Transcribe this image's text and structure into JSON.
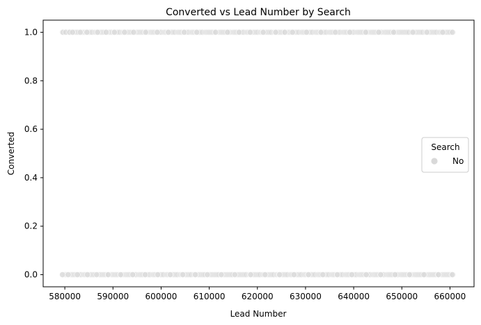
{
  "chart_data": {
    "type": "scatter",
    "title": "Converted vs Lead Number by Search",
    "xlabel": "Lead Number",
    "ylabel": "Converted",
    "xlim": [
      575500,
      665000
    ],
    "ylim": [
      -0.05,
      1.05
    ],
    "x_ticks": [
      580000,
      590000,
      600000,
      610000,
      620000,
      630000,
      640000,
      650000,
      660000
    ],
    "x_tick_labels": [
      "580000",
      "590000",
      "600000",
      "610000",
      "620000",
      "630000",
      "640000",
      "650000",
      "660000"
    ],
    "y_ticks": [
      0.0,
      0.2,
      0.4,
      0.6,
      0.8,
      1.0
    ],
    "y_tick_labels": [
      "0.0",
      "0.2",
      "0.4",
      "0.6",
      "0.8",
      "1.0"
    ],
    "grid": false,
    "legend": {
      "title": "Search",
      "placement": "center-right",
      "entries": [
        {
          "label": "No",
          "color": "#d9d9d9"
        }
      ]
    },
    "series": [
      {
        "name": "No",
        "color": "#d9d9d9",
        "y_levels": [
          0,
          1
        ],
        "x_range": [
          579500,
          660700
        ],
        "points": [
          {
            "x": 579600,
            "y": 1
          },
          {
            "x": 580200,
            "y": 1
          },
          {
            "x": 581000,
            "y": 1
          },
          {
            "x": 581600,
            "y": 1
          },
          {
            "x": 583200,
            "y": 1
          },
          {
            "x": 584600,
            "y": 1
          },
          {
            "x": 586800,
            "y": 1
          },
          {
            "x": 588600,
            "y": 1
          },
          {
            "x": 590300,
            "y": 1
          },
          {
            "x": 592400,
            "y": 1
          },
          {
            "x": 594300,
            "y": 1
          },
          {
            "x": 596800,
            "y": 1
          },
          {
            "x": 599200,
            "y": 1
          },
          {
            "x": 601500,
            "y": 1
          },
          {
            "x": 604800,
            "y": 1
          },
          {
            "x": 607400,
            "y": 1
          },
          {
            "x": 611300,
            "y": 1
          },
          {
            "x": 613800,
            "y": 1
          },
          {
            "x": 616200,
            "y": 1
          },
          {
            "x": 618500,
            "y": 1
          },
          {
            "x": 621200,
            "y": 1
          },
          {
            "x": 623800,
            "y": 1
          },
          {
            "x": 625700,
            "y": 1
          },
          {
            "x": 627300,
            "y": 1
          },
          {
            "x": 630200,
            "y": 1
          },
          {
            "x": 633200,
            "y": 1
          },
          {
            "x": 636200,
            "y": 1
          },
          {
            "x": 639200,
            "y": 1
          },
          {
            "x": 642500,
            "y": 1
          },
          {
            "x": 645200,
            "y": 1
          },
          {
            "x": 648300,
            "y": 1
          },
          {
            "x": 652300,
            "y": 1
          },
          {
            "x": 655200,
            "y": 1
          },
          {
            "x": 658500,
            "y": 1
          },
          {
            "x": 660500,
            "y": 1
          },
          {
            "x": 579500,
            "y": 0
          },
          {
            "x": 580700,
            "y": 0
          },
          {
            "x": 582600,
            "y": 0
          },
          {
            "x": 584700,
            "y": 0
          },
          {
            "x": 586600,
            "y": 0
          },
          {
            "x": 589000,
            "y": 0
          },
          {
            "x": 591600,
            "y": 0
          },
          {
            "x": 594100,
            "y": 0
          },
          {
            "x": 596700,
            "y": 0
          },
          {
            "x": 599300,
            "y": 0
          },
          {
            "x": 601900,
            "y": 0
          },
          {
            "x": 604500,
            "y": 0
          },
          {
            "x": 607100,
            "y": 0
          },
          {
            "x": 609600,
            "y": 0
          },
          {
            "x": 612500,
            "y": 0
          },
          {
            "x": 615300,
            "y": 0
          },
          {
            "x": 618600,
            "y": 0
          },
          {
            "x": 621600,
            "y": 0
          },
          {
            "x": 624600,
            "y": 0
          },
          {
            "x": 627600,
            "y": 0
          },
          {
            "x": 630600,
            "y": 0
          },
          {
            "x": 633600,
            "y": 0
          },
          {
            "x": 636600,
            "y": 0
          },
          {
            "x": 639600,
            "y": 0
          },
          {
            "x": 642600,
            "y": 0
          },
          {
            "x": 645600,
            "y": 0
          },
          {
            "x": 648600,
            "y": 0
          },
          {
            "x": 651600,
            "y": 0
          },
          {
            "x": 654600,
            "y": 0
          },
          {
            "x": 657600,
            "y": 0
          },
          {
            "x": 660500,
            "y": 0
          }
        ]
      }
    ]
  }
}
